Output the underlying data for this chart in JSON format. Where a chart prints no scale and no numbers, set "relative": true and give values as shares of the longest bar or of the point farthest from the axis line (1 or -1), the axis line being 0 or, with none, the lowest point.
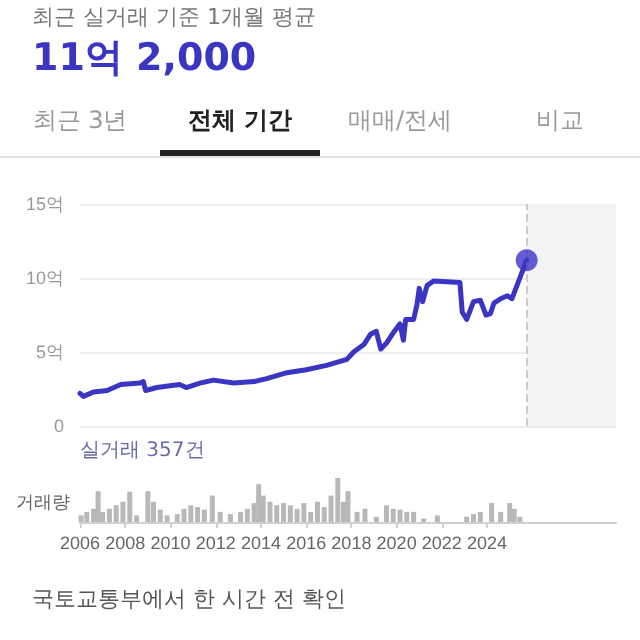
{
  "chart_data": [
    {
      "type": "line",
      "title": "11억 2,000",
      "subtitle": "최근 실거래 기준 1개월 평균",
      "annotations": [
        "최근 3년",
        "전체 기간",
        "매매/전세",
        "비교",
        "실거래 357건"
      ],
      "xlim": [
        2006,
        2029.7
      ],
      "ylim": [
        0,
        15
      ],
      "yticks": [
        {
          "value": 0,
          "label": "0"
        },
        {
          "value": 5,
          "label": "5억"
        },
        {
          "value": 10,
          "label": "10억"
        },
        {
          "value": 15,
          "label": "15억"
        }
      ],
      "tick_labels": "y",
      "grid": "y",
      "marker": "none",
      "line_style": "solid",
      "ref_lines": [
        {
          "axis": "x",
          "value": 2025.75,
          "color": "#cccccc",
          "line_style": "dashed"
        }
      ],
      "bands": [
        {
          "axis": "x",
          "from": 2025.75,
          "to": 2029.7,
          "color": "#f3f3f3"
        }
      ],
      "series": [
        {
          "color": "#3b35c4",
          "x": [
            2006.0,
            2006.15,
            2006.6,
            2007.2,
            2007.8,
            2008.65,
            2008.8,
            2008.9,
            2009.4,
            2010.4,
            2010.7,
            2011.3,
            2011.9,
            2012.8,
            2013.7,
            2014.25,
            2015.15,
            2016.0,
            2016.9,
            2017.8,
            2018.1,
            2018.55,
            2018.85,
            2019.1,
            2019.3,
            2019.55,
            2019.85,
            2020.15,
            2020.3,
            2020.4,
            2020.75,
            2020.9,
            2021.0,
            2021.15,
            2021.35,
            2021.65,
            2022.8,
            2022.9,
            2023.1,
            2023.4,
            2023.7,
            2023.95,
            2024.15,
            2024.3,
            2024.6,
            2024.9,
            2025.1,
            2025.4,
            2025.75
          ],
          "values": [
            2.2,
            2.0,
            2.3,
            2.4,
            2.8,
            2.9,
            3.0,
            2.4,
            2.6,
            2.8,
            2.6,
            2.9,
            3.1,
            2.9,
            3.0,
            3.2,
            3.6,
            3.8,
            4.1,
            4.5,
            5.0,
            5.5,
            6.2,
            6.4,
            5.2,
            5.6,
            6.3,
            6.9,
            5.8,
            7.2,
            7.2,
            8.2,
            9.3,
            8.4,
            9.5,
            9.8,
            9.7,
            7.7,
            7.2,
            8.4,
            8.5,
            7.5,
            7.6,
            8.3,
            8.6,
            8.8,
            8.6,
            9.8,
            11.2
          ]
        },
        {
          "type": "scatter",
          "marker": "circle",
          "color": "#3b35c4",
          "x": [
            2025.75
          ],
          "values": [
            11.2
          ]
        }
      ]
    },
    {
      "type": "bar",
      "relative": true,
      "ylabel": "거래량",
      "annotations": [
        "국토교통부에서 한 시간 전 확인"
      ],
      "xlim": [
        2006,
        2029.7
      ],
      "xticks": [
        2006,
        2008,
        2010,
        2012,
        2014,
        2016,
        2018,
        2020,
        2022,
        2024
      ],
      "tick_labels": "x",
      "color": "#b8b8b8",
      "x": [
        2006.05,
        2006.3,
        2006.6,
        2006.8,
        2007.0,
        2007.3,
        2007.6,
        2007.9,
        2008.2,
        2008.5,
        2009.0,
        2009.25,
        2009.55,
        2009.85,
        2010.3,
        2010.6,
        2010.9,
        2011.2,
        2011.5,
        2011.85,
        2012.2,
        2012.65,
        2013.1,
        2013.4,
        2013.7,
        2013.9,
        2014.1,
        2014.4,
        2014.7,
        2015.0,
        2015.3,
        2015.6,
        2015.9,
        2016.2,
        2016.5,
        2016.8,
        2017.1,
        2017.4,
        2017.65,
        2017.85,
        2018.25,
        2018.6,
        2019.1,
        2019.55,
        2019.85,
        2020.15,
        2020.45,
        2020.75,
        2021.2,
        2021.8,
        2023.1,
        2023.4,
        2023.7,
        2024.2,
        2024.6,
        2025.0,
        2025.2,
        2025.45
      ],
      "values": [
        0.15,
        0.23,
        0.3,
        0.7,
        0.23,
        0.3,
        0.38,
        0.46,
        0.69,
        0.15,
        0.7,
        0.46,
        0.28,
        0.15,
        0.18,
        0.3,
        0.38,
        0.34,
        0.28,
        0.6,
        0.23,
        0.18,
        0.23,
        0.3,
        0.43,
        0.86,
        0.6,
        0.46,
        0.38,
        0.43,
        0.38,
        0.3,
        0.43,
        0.23,
        0.46,
        0.34,
        0.6,
        1.0,
        0.46,
        0.7,
        0.23,
        0.3,
        0.12,
        0.38,
        0.3,
        0.28,
        0.23,
        0.23,
        0.08,
        0.15,
        0.12,
        0.18,
        0.23,
        0.43,
        0.23,
        0.43,
        0.3,
        0.12
      ]
    }
  ]
}
